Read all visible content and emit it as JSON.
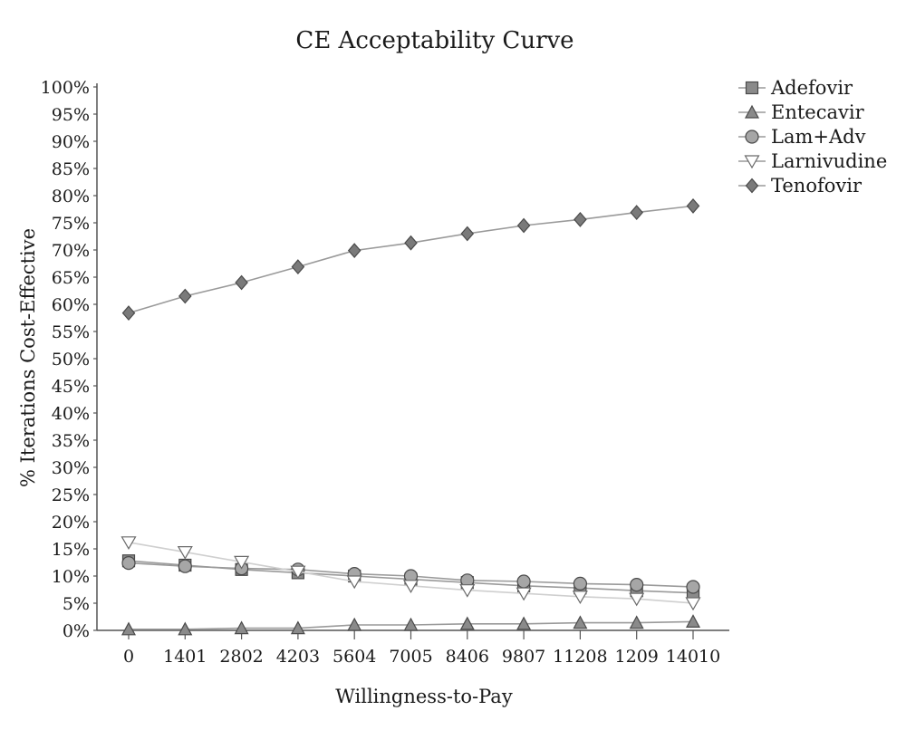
{
  "chart_data": {
    "type": "line",
    "title": "CE Acceptability Curve",
    "xlabel": "Willingness-to-Pay",
    "ylabel": "% Iterations Cost-Effective",
    "categories": [
      "0",
      "1401",
      "2802",
      "4203",
      "5604",
      "7005",
      "8406",
      "9807",
      "11208",
      "1209",
      "14010"
    ],
    "yticks": [
      "0%",
      "5%",
      "10%",
      "15%",
      "20%",
      "25%",
      "30%",
      "35%",
      "40%",
      "45%",
      "50%",
      "55%",
      "60%",
      "65%",
      "70%",
      "75%",
      "80%",
      "85%",
      "90%",
      "95%",
      "100%"
    ],
    "ylim": [
      0,
      100
    ],
    "grid": false,
    "legend_position": "top-right",
    "series": [
      {
        "name": "Adefovir",
        "marker": "square",
        "color": "#8a8a8a",
        "values": [
          12.8,
          12.0,
          11.2,
          10.6,
          10.0,
          9.4,
          8.8,
          8.2,
          7.8,
          7.3,
          6.9
        ]
      },
      {
        "name": "Entecavir",
        "marker": "triangle-up",
        "color": "#8a8a8a",
        "values": [
          0.2,
          0.2,
          0.4,
          0.4,
          1.0,
          1.0,
          1.2,
          1.2,
          1.4,
          1.4,
          1.6
        ]
      },
      {
        "name": "Lam+Adv",
        "marker": "circle",
        "color": "#a6a6a6",
        "values": [
          12.4,
          11.8,
          11.4,
          11.2,
          10.4,
          10.0,
          9.2,
          9.0,
          8.6,
          8.4,
          8.0
        ]
      },
      {
        "name": "Larnivudine",
        "marker": "triangle-down",
        "color": "#ffffff",
        "values": [
          16.2,
          14.4,
          12.6,
          10.8,
          9.0,
          8.2,
          7.4,
          6.8,
          6.2,
          5.8,
          5.0
        ]
      },
      {
        "name": "Tenofovir",
        "marker": "diamond",
        "color": "#7a7a7a",
        "values": [
          58.4,
          61.5,
          64.0,
          66.9,
          69.9,
          71.3,
          73.0,
          74.5,
          75.6,
          76.9,
          78.1
        ]
      }
    ]
  }
}
